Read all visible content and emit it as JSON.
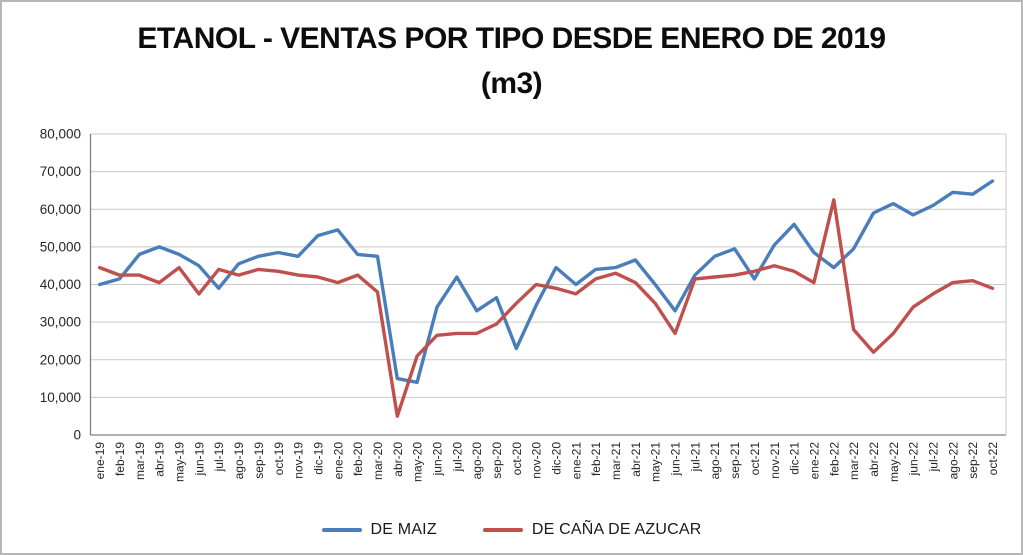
{
  "chart_data": {
    "type": "line",
    "title": "ETANOL - VENTAS POR TIPO DESDE ENERO DE 2019",
    "subtitle": "(m3)",
    "x": [
      "ene-19",
      "feb-19",
      "mar-19",
      "abr-19",
      "may-19",
      "jun-19",
      "jul-19",
      "ago-19",
      "sep-19",
      "oct-19",
      "nov-19",
      "dic-19",
      "ene-20",
      "feb-20",
      "mar-20",
      "abr-20",
      "may-20",
      "jun-20",
      "jul-20",
      "ago-20",
      "sep-20",
      "oct-20",
      "nov-20",
      "dic-20",
      "ene-21",
      "feb-21",
      "mar-21",
      "abr-21",
      "may-21",
      "jun-21",
      "jul-21",
      "ago-21",
      "sep-21",
      "oct-21",
      "nov-21",
      "dic-21",
      "ene-22",
      "feb-22",
      "mar-22",
      "abr-22",
      "may-22",
      "jun-22",
      "jul-22",
      "ago-22",
      "sep-22",
      "oct-22"
    ],
    "series": [
      {
        "name": "DE MAIZ",
        "color": "#4A7EBB",
        "values": [
          40000,
          41500,
          48000,
          50000,
          48000,
          45000,
          39000,
          45500,
          47500,
          48500,
          47500,
          53000,
          54500,
          48000,
          47500,
          15000,
          14000,
          34000,
          42000,
          33000,
          36500,
          23000,
          34500,
          44500,
          40000,
          44000,
          44500,
          46500,
          40000,
          33000,
          42500,
          47500,
          49500,
          41500,
          50500,
          56000,
          48500,
          44500,
          49500,
          59000,
          61500,
          58500,
          61000,
          64500,
          64000,
          67500
        ]
      },
      {
        "name": "DE CAÑA DE AZUCAR",
        "color": "#C0504D",
        "values": [
          44500,
          42500,
          42500,
          40500,
          44500,
          37500,
          44000,
          42500,
          44000,
          43500,
          42500,
          42000,
          40500,
          42500,
          38000,
          5000,
          21000,
          26500,
          27000,
          27000,
          29500,
          35000,
          40000,
          39000,
          37500,
          41500,
          43000,
          40500,
          35000,
          27000,
          41500,
          42000,
          42500,
          43500,
          45000,
          43500,
          40500,
          62500,
          28000,
          22000,
          27000,
          34000,
          37500,
          40500,
          41000,
          39000
        ]
      }
    ],
    "ylim": [
      0,
      80000
    ],
    "ytick_step": 10000,
    "ytick_labels": [
      "0",
      "10,000",
      "20,000",
      "30,000",
      "40,000",
      "50,000",
      "60,000",
      "70,000",
      "80,000"
    ],
    "grid": true,
    "legend_position": "bottom"
  },
  "style": {
    "grid_color": "#C9C9C9",
    "axis_color": "#808080",
    "plot_border_color": "#C9C9C9",
    "tick_text_color": "#404040"
  }
}
